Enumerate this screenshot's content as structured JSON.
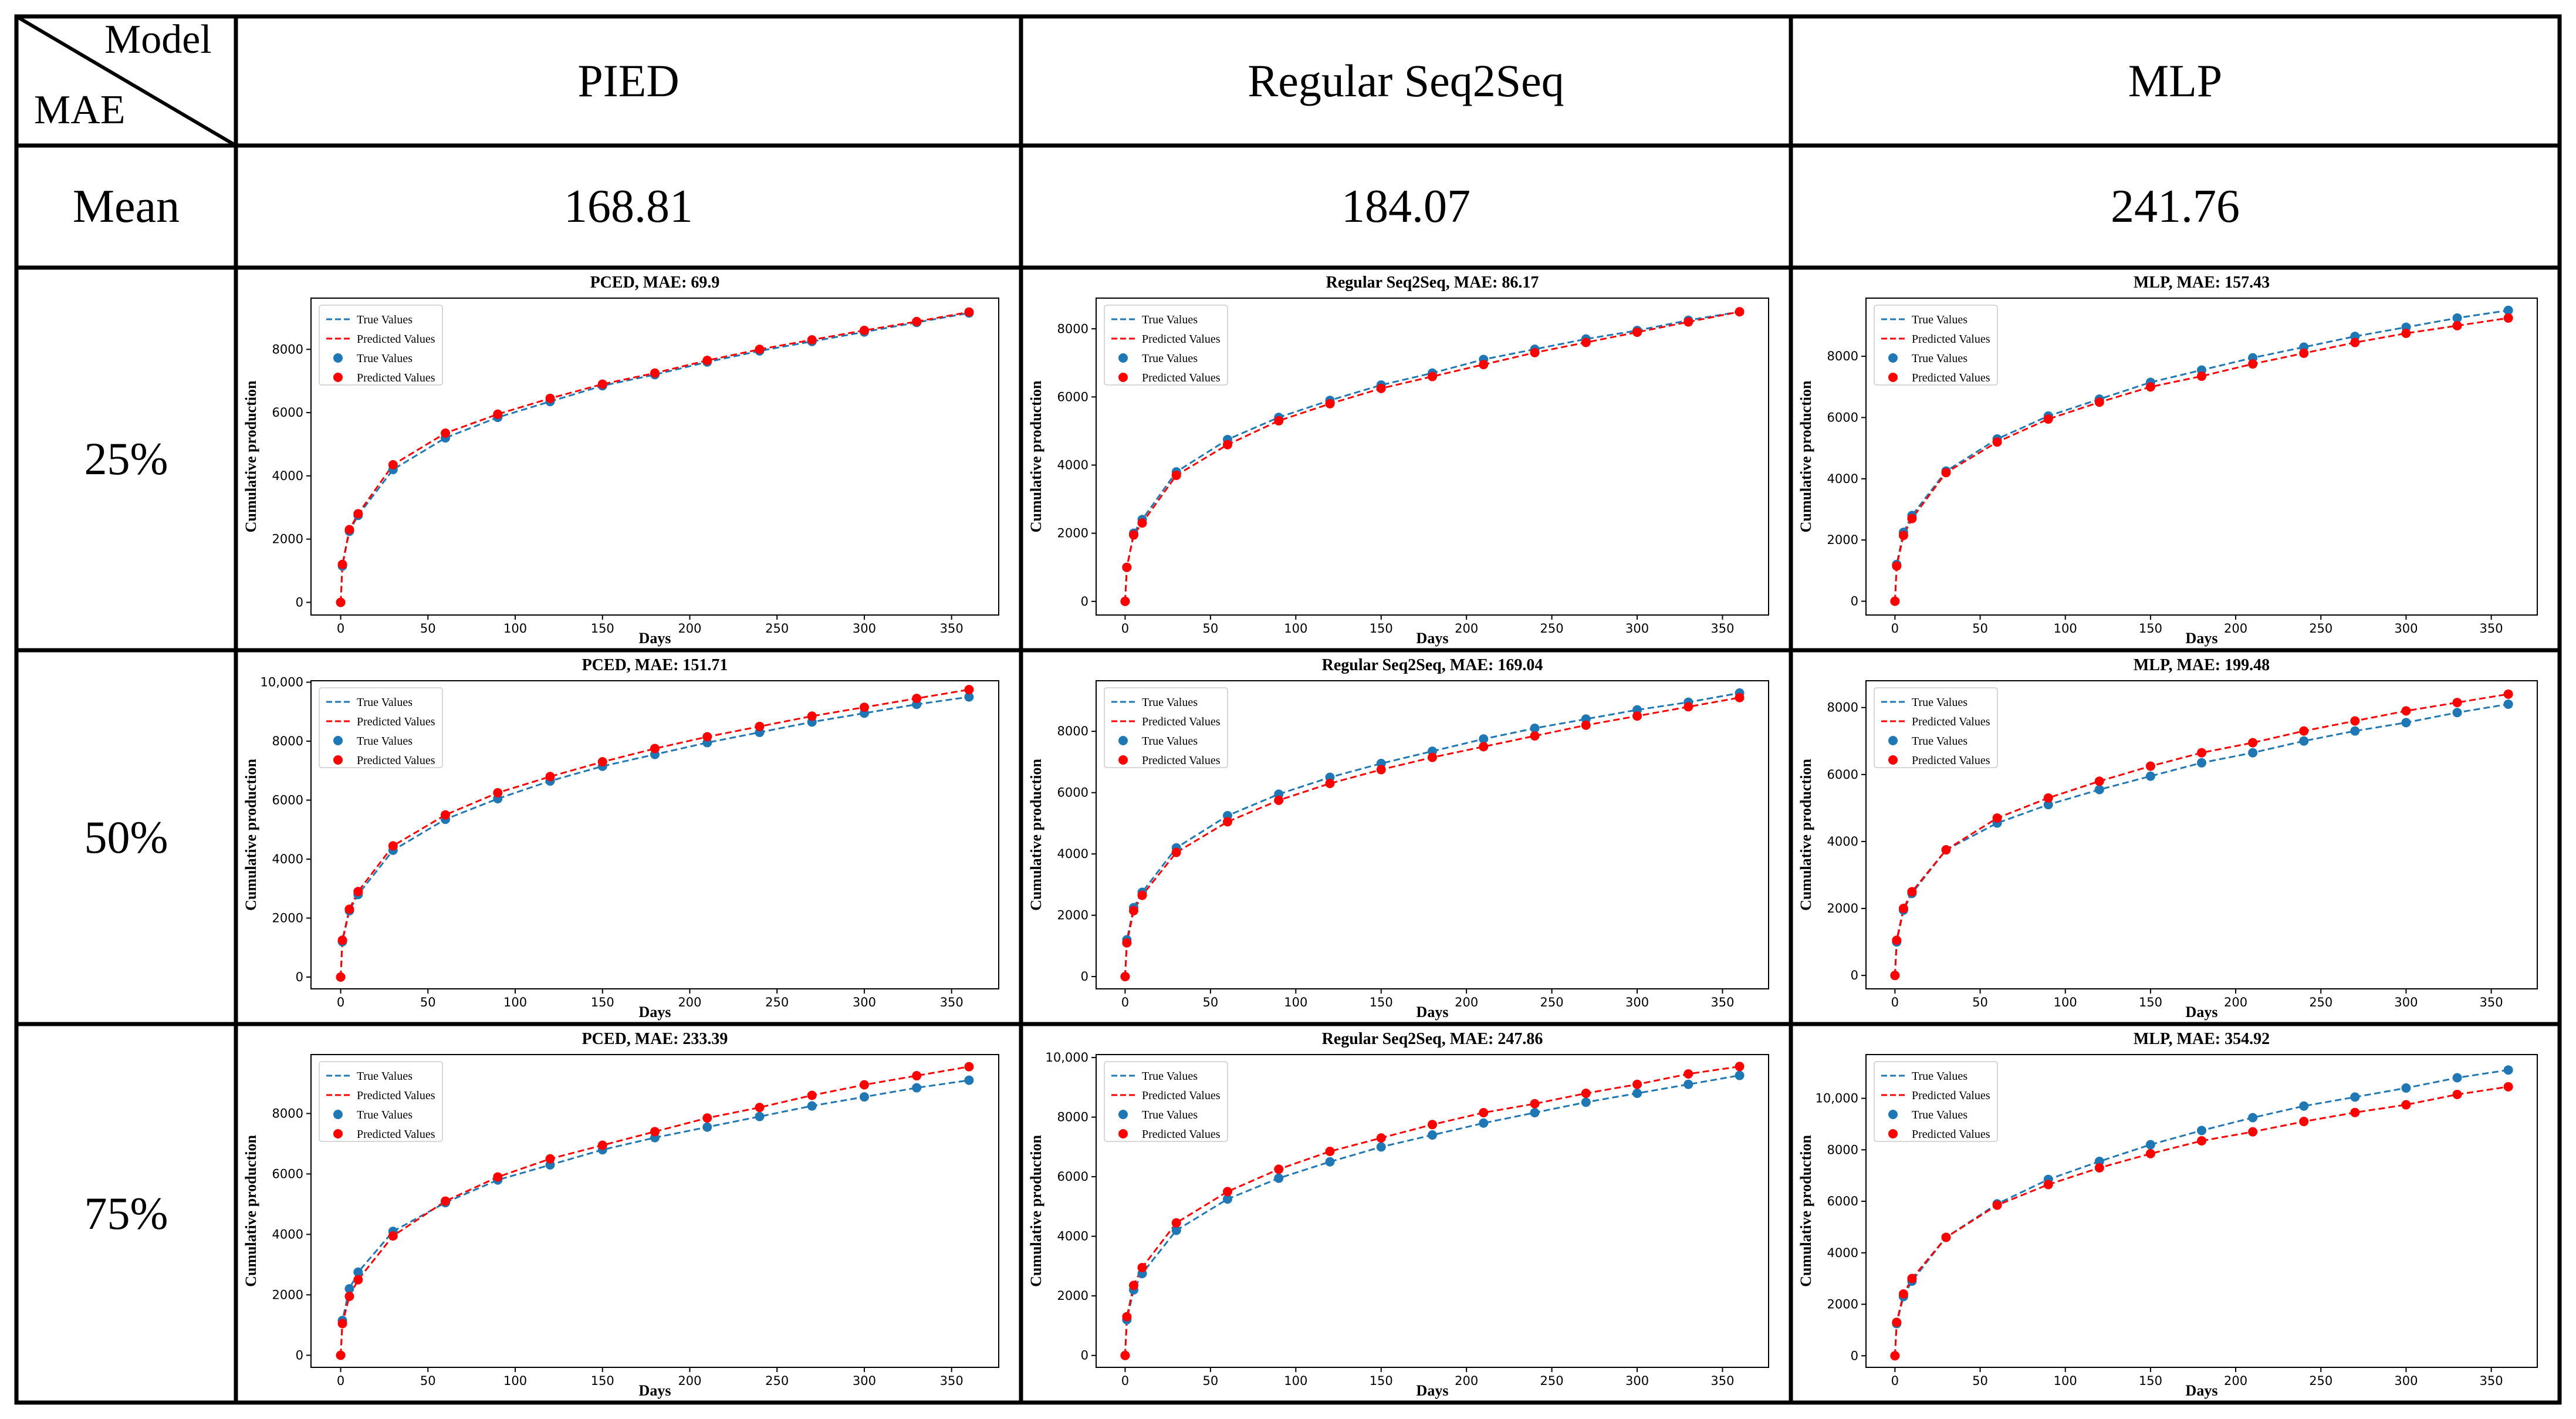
{
  "corner": {
    "model_label": "Model",
    "metric_label": "MAE"
  },
  "columns": [
    "PIED",
    "Regular Seq2Seq",
    "MLP"
  ],
  "mean_row": {
    "label": "Mean",
    "values": [
      "168.81",
      "184.07",
      "241.76"
    ]
  },
  "row_labels": [
    "25%",
    "50%",
    "75%"
  ],
  "colors": {
    "true_series": "#1f77b4",
    "predicted_series": "#ff0000",
    "grid_line": "#000000"
  },
  "chart_data": [
    {
      "type": "line",
      "title": "PCED, MAE: 69.9",
      "xlabel": "Days",
      "ylabel": "Cumulative production",
      "xlim": [
        -17,
        377
      ],
      "ylim": [
        -400,
        9620
      ],
      "xticks": [
        0,
        50,
        100,
        150,
        200,
        250,
        300,
        350
      ],
      "yticks": [
        0,
        2000,
        4000,
        6000,
        8000
      ],
      "legend": [
        "True Values",
        "Predicted Values",
        "True Values",
        "Predicted Values"
      ],
      "legend_position": "upper-left",
      "x": [
        0,
        1,
        5,
        10,
        30,
        60,
        90,
        120,
        150,
        180,
        210,
        240,
        270,
        300,
        330,
        360
      ],
      "series": [
        {
          "name": "True Values",
          "values": [
            0,
            1150,
            2250,
            2750,
            4200,
            5200,
            5850,
            6350,
            6850,
            7200,
            7600,
            7950,
            8250,
            8550,
            8850,
            9150
          ]
        },
        {
          "name": "Predicted Values",
          "values": [
            0,
            1200,
            2300,
            2800,
            4350,
            5350,
            5950,
            6450,
            6900,
            7250,
            7650,
            8000,
            8300,
            8600,
            8880,
            9180
          ]
        }
      ]
    },
    {
      "type": "line",
      "title": "Regular Seq2Seq, MAE: 86.17",
      "xlabel": "Days",
      "ylabel": "Cumulative production",
      "xlim": [
        -17,
        377
      ],
      "ylim": [
        -400,
        8900
      ],
      "xticks": [
        0,
        50,
        100,
        150,
        200,
        250,
        300,
        350
      ],
      "yticks": [
        0,
        2000,
        4000,
        6000,
        8000
      ],
      "legend": [
        "True Values",
        "Predicted Values",
        "True Values",
        "Predicted Values"
      ],
      "legend_position": "upper-left",
      "x": [
        0,
        1,
        5,
        10,
        30,
        60,
        90,
        120,
        150,
        180,
        210,
        240,
        270,
        300,
        330,
        360
      ],
      "series": [
        {
          "name": "True Values",
          "values": [
            0,
            1000,
            2000,
            2400,
            3800,
            4750,
            5400,
            5900,
            6350,
            6700,
            7100,
            7400,
            7700,
            7950,
            8250,
            8500
          ]
        },
        {
          "name": "Predicted Values",
          "values": [
            0,
            1000,
            1950,
            2300,
            3700,
            4600,
            5300,
            5800,
            6250,
            6600,
            6950,
            7300,
            7600,
            7900,
            8200,
            8500
          ]
        }
      ]
    },
    {
      "type": "line",
      "title": "MLP, MAE: 157.43",
      "xlabel": "Days",
      "ylabel": "Cumulative production",
      "xlim": [
        -17,
        377
      ],
      "ylim": [
        -450,
        9900
      ],
      "xticks": [
        0,
        50,
        100,
        150,
        200,
        250,
        300,
        350
      ],
      "yticks": [
        0,
        2000,
        4000,
        6000,
        8000
      ],
      "legend": [
        "True Values",
        "Predicted Values",
        "True Values",
        "Predicted Values"
      ],
      "legend_position": "upper-left",
      "x": [
        0,
        1,
        5,
        10,
        30,
        60,
        90,
        120,
        150,
        180,
        210,
        240,
        270,
        300,
        330,
        360
      ],
      "series": [
        {
          "name": "True Values",
          "values": [
            0,
            1200,
            2250,
            2800,
            4250,
            5300,
            6050,
            6600,
            7150,
            7550,
            7950,
            8300,
            8650,
            8950,
            9250,
            9500
          ]
        },
        {
          "name": "Predicted Values",
          "values": [
            0,
            1150,
            2150,
            2700,
            4200,
            5200,
            5950,
            6500,
            7000,
            7350,
            7750,
            8100,
            8450,
            8750,
            9000,
            9250
          ]
        }
      ]
    },
    {
      "type": "line",
      "title": "PCED, MAE: 151.71",
      "xlabel": "Days",
      "ylabel": "Cumulative production",
      "xlim": [
        -17,
        377
      ],
      "ylim": [
        -400,
        10050
      ],
      "xticks": [
        0,
        50,
        100,
        150,
        200,
        250,
        300,
        350
      ],
      "yticks": [
        0,
        2000,
        4000,
        6000,
        8000,
        10000
      ],
      "legend": [
        "True Values",
        "Predicted Values",
        "True Values",
        "Predicted Values"
      ],
      "legend_position": "upper-left",
      "x": [
        0,
        1,
        5,
        10,
        30,
        60,
        90,
        120,
        150,
        180,
        210,
        240,
        270,
        300,
        330,
        360
      ],
      "series": [
        {
          "name": "True Values",
          "values": [
            0,
            1200,
            2250,
            2800,
            4300,
            5350,
            6050,
            6650,
            7150,
            7550,
            7950,
            8300,
            8650,
            8950,
            9250,
            9500
          ]
        },
        {
          "name": "Predicted Values",
          "values": [
            0,
            1250,
            2300,
            2900,
            4450,
            5500,
            6250,
            6800,
            7300,
            7750,
            8150,
            8500,
            8850,
            9150,
            9450,
            9750
          ]
        }
      ]
    },
    {
      "type": "line",
      "title": "Regular Seq2Seq, MAE: 169.04",
      "xlabel": "Days",
      "ylabel": "Cumulative production",
      "xlim": [
        -17,
        377
      ],
      "ylim": [
        -400,
        9650
      ],
      "xticks": [
        0,
        50,
        100,
        150,
        200,
        250,
        300,
        350
      ],
      "yticks": [
        0,
        2000,
        4000,
        6000,
        8000
      ],
      "legend": [
        "True Values",
        "Predicted Values",
        "True Values",
        "Predicted Values"
      ],
      "legend_position": "upper-left",
      "x": [
        0,
        1,
        5,
        10,
        30,
        60,
        90,
        120,
        150,
        180,
        210,
        240,
        270,
        300,
        330,
        360
      ],
      "series": [
        {
          "name": "True Values",
          "values": [
            0,
            1200,
            2250,
            2750,
            4200,
            5250,
            5950,
            6500,
            6950,
            7350,
            7750,
            8100,
            8400,
            8700,
            8950,
            9250
          ]
        },
        {
          "name": "Predicted Values",
          "values": [
            0,
            1100,
            2150,
            2650,
            4050,
            5050,
            5750,
            6300,
            6750,
            7150,
            7500,
            7850,
            8200,
            8500,
            8800,
            9100
          ]
        }
      ]
    },
    {
      "type": "line",
      "title": "MLP, MAE: 199.48",
      "xlabel": "Days",
      "ylabel": "Cumulative production",
      "xlim": [
        -17,
        377
      ],
      "ylim": [
        -400,
        8800
      ],
      "xticks": [
        0,
        50,
        100,
        150,
        200,
        250,
        300,
        350
      ],
      "yticks": [
        0,
        2000,
        4000,
        6000,
        8000
      ],
      "legend": [
        "True Values",
        "Predicted Values",
        "True Values",
        "Predicted Values"
      ],
      "legend_position": "upper-left",
      "x": [
        0,
        1,
        5,
        10,
        30,
        60,
        90,
        120,
        150,
        180,
        210,
        240,
        270,
        300,
        330,
        360
      ],
      "series": [
        {
          "name": "True Values",
          "values": [
            0,
            1000,
            1950,
            2450,
            3750,
            4550,
            5100,
            5550,
            5950,
            6350,
            6650,
            7000,
            7300,
            7550,
            7850,
            8100
          ]
        },
        {
          "name": "Predicted Values",
          "values": [
            0,
            1050,
            2000,
            2500,
            3750,
            4700,
            5300,
            5800,
            6250,
            6650,
            6950,
            7300,
            7600,
            7900,
            8150,
            8400
          ]
        }
      ]
    },
    {
      "type": "line",
      "title": "PCED, MAE: 233.39",
      "xlabel": "Days",
      "ylabel": "Cumulative production",
      "xlim": [
        -17,
        377
      ],
      "ylim": [
        -400,
        9950
      ],
      "xticks": [
        0,
        50,
        100,
        150,
        200,
        250,
        300,
        350
      ],
      "yticks": [
        0,
        2000,
        4000,
        6000,
        8000
      ],
      "legend": [
        "True Values",
        "Predicted Values",
        "True Values",
        "Predicted Values"
      ],
      "legend_position": "upper-left",
      "x": [
        0,
        1,
        5,
        10,
        30,
        60,
        90,
        120,
        150,
        180,
        210,
        240,
        270,
        300,
        330,
        360
      ],
      "series": [
        {
          "name": "True Values",
          "values": [
            0,
            1150,
            2200,
            2750,
            4100,
            5050,
            5800,
            6300,
            6800,
            7200,
            7550,
            7900,
            8250,
            8550,
            8850,
            9100
          ]
        },
        {
          "name": "Predicted Values",
          "values": [
            0,
            1050,
            1950,
            2500,
            3950,
            5100,
            5900,
            6500,
            6950,
            7400,
            7850,
            8200,
            8600,
            8950,
            9250,
            9550
          ]
        }
      ]
    },
    {
      "type": "line",
      "title": "Regular Seq2Seq, MAE: 247.86",
      "xlabel": "Days",
      "ylabel": "Cumulative production",
      "xlim": [
        -17,
        377
      ],
      "ylim": [
        -400,
        10100
      ],
      "xticks": [
        0,
        50,
        100,
        150,
        200,
        250,
        300,
        350
      ],
      "yticks": [
        0,
        2000,
        4000,
        6000,
        8000,
        10000
      ],
      "legend": [
        "True Values",
        "Predicted Values",
        "True Values",
        "Predicted Values"
      ],
      "legend_position": "upper-left",
      "x": [
        0,
        1,
        5,
        10,
        30,
        60,
        90,
        120,
        150,
        180,
        210,
        240,
        270,
        300,
        330,
        360
      ],
      "series": [
        {
          "name": "True Values",
          "values": [
            0,
            1200,
            2200,
            2750,
            4200,
            5250,
            5950,
            6500,
            7000,
            7400,
            7800,
            8150,
            8500,
            8800,
            9100,
            9400
          ]
        },
        {
          "name": "Predicted Values",
          "values": [
            0,
            1300,
            2350,
            2950,
            4450,
            5500,
            6250,
            6850,
            7300,
            7750,
            8150,
            8450,
            8800,
            9100,
            9450,
            9700
          ]
        }
      ]
    },
    {
      "type": "line",
      "title": "MLP, MAE: 354.92",
      "xlabel": "Days",
      "ylabel": "Cumulative production",
      "xlim": [
        -17,
        377
      ],
      "ylim": [
        -450,
        11700
      ],
      "xticks": [
        0,
        50,
        100,
        150,
        200,
        250,
        300,
        350
      ],
      "yticks": [
        0,
        2000,
        4000,
        6000,
        8000,
        10000
      ],
      "legend": [
        "True Values",
        "Predicted Values",
        "True Values",
        "Predicted Values"
      ],
      "legend_position": "upper-left",
      "x": [
        0,
        1,
        5,
        10,
        30,
        60,
        90,
        120,
        150,
        180,
        210,
        240,
        270,
        300,
        330,
        360
      ],
      "series": [
        {
          "name": "True Values",
          "values": [
            0,
            1250,
            2300,
            2900,
            4600,
            5900,
            6850,
            7550,
            8200,
            8750,
            9250,
            9700,
            10050,
            10400,
            10800,
            11100
          ]
        },
        {
          "name": "Predicted Values",
          "values": [
            0,
            1300,
            2400,
            3000,
            4600,
            5850,
            6650,
            7300,
            7850,
            8350,
            8700,
            9100,
            9450,
            9750,
            10150,
            10450
          ]
        }
      ]
    }
  ]
}
